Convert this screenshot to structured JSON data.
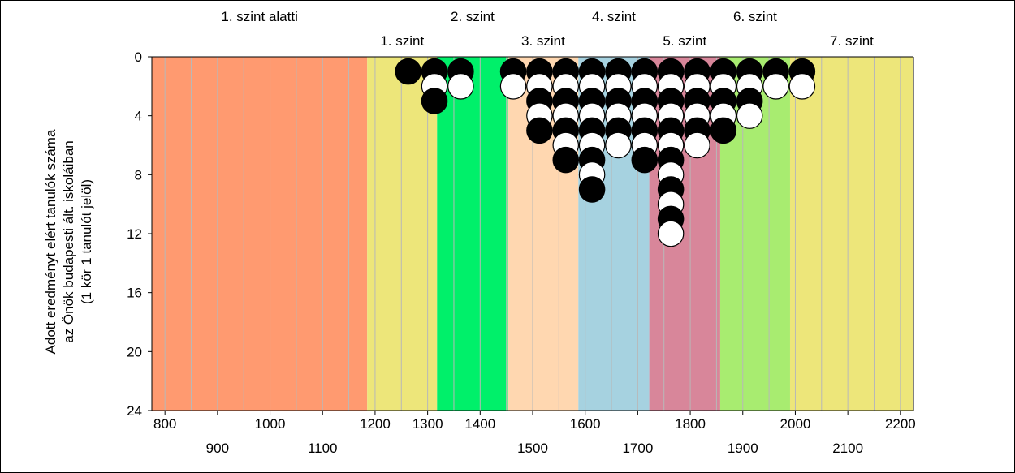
{
  "chart_data": {
    "type": "scatter",
    "subtype": "stacked-dot-plot",
    "ylabel_lines": [
      "Adott eredményt elért tanulók száma",
      "az Önök budapesti ált. iskoláiban",
      "(1 kör 1 tanulót jelöl)"
    ],
    "ylim": [
      0,
      24
    ],
    "y_ticks": [
      0,
      4,
      8,
      12,
      16,
      20,
      24
    ],
    "y_reversed": true,
    "xlim": [
      775,
      2225
    ],
    "x_ticks_upper": [
      800,
      1000,
      1200,
      1300,
      1400,
      1600,
      1800,
      2000,
      2200
    ],
    "x_ticks_lower": [
      900,
      1100,
      1500,
      1700,
      1900,
      2100
    ],
    "bands": [
      {
        "label": "1. szint alatti",
        "from": 775,
        "to": 1185,
        "color": "#ff9a70",
        "row": 0
      },
      {
        "label": "1. szint",
        "from": 1185,
        "to": 1318,
        "color": "#ede67a",
        "row": 1
      },
      {
        "label": "2. szint",
        "from": 1318,
        "to": 1453,
        "color": "#00f06a",
        "row": 0
      },
      {
        "label": "3. szint",
        "from": 1453,
        "to": 1587,
        "color": "#ffd7b0",
        "row": 1
      },
      {
        "label": "4. szint",
        "from": 1587,
        "to": 1722,
        "color": "#a6d2e0",
        "row": 0
      },
      {
        "label": "5. szint",
        "from": 1722,
        "to": 1857,
        "color": "#d8869a",
        "row": 1
      },
      {
        "label": "6. szint",
        "from": 1857,
        "to": 1990,
        "color": "#a8ec70",
        "row": 0
      },
      {
        "label": "7. szint",
        "from": 1990,
        "to": 2225,
        "color": "#ede67a",
        "row": 1
      }
    ],
    "gridlines_x": [
      800,
      850,
      900,
      950,
      1000,
      1050,
      1100,
      1150,
      1200,
      1250,
      1300,
      1350,
      1400,
      1450,
      1500,
      1550,
      1600,
      1650,
      1700,
      1750,
      1800,
      1850,
      1900,
      1950,
      2000,
      2050,
      2100,
      2150,
      2200
    ],
    "columns": [
      {
        "x": 1263,
        "count": 1
      },
      {
        "x": 1313,
        "count": 3
      },
      {
        "x": 1363,
        "count": 2
      },
      {
        "x": 1463,
        "count": 2
      },
      {
        "x": 1513,
        "count": 5
      },
      {
        "x": 1563,
        "count": 7
      },
      {
        "x": 1613,
        "count": 9
      },
      {
        "x": 1663,
        "count": 6
      },
      {
        "x": 1713,
        "count": 7
      },
      {
        "x": 1763,
        "count": 12
      },
      {
        "x": 1813,
        "count": 6
      },
      {
        "x": 1863,
        "count": 5
      },
      {
        "x": 1913,
        "count": 4
      },
      {
        "x": 1963,
        "count": 2
      },
      {
        "x": 2013,
        "count": 2
      }
    ],
    "dot_colors": {
      "odd": "#000000",
      "even": "#ffffff",
      "stroke": "#000000"
    }
  }
}
